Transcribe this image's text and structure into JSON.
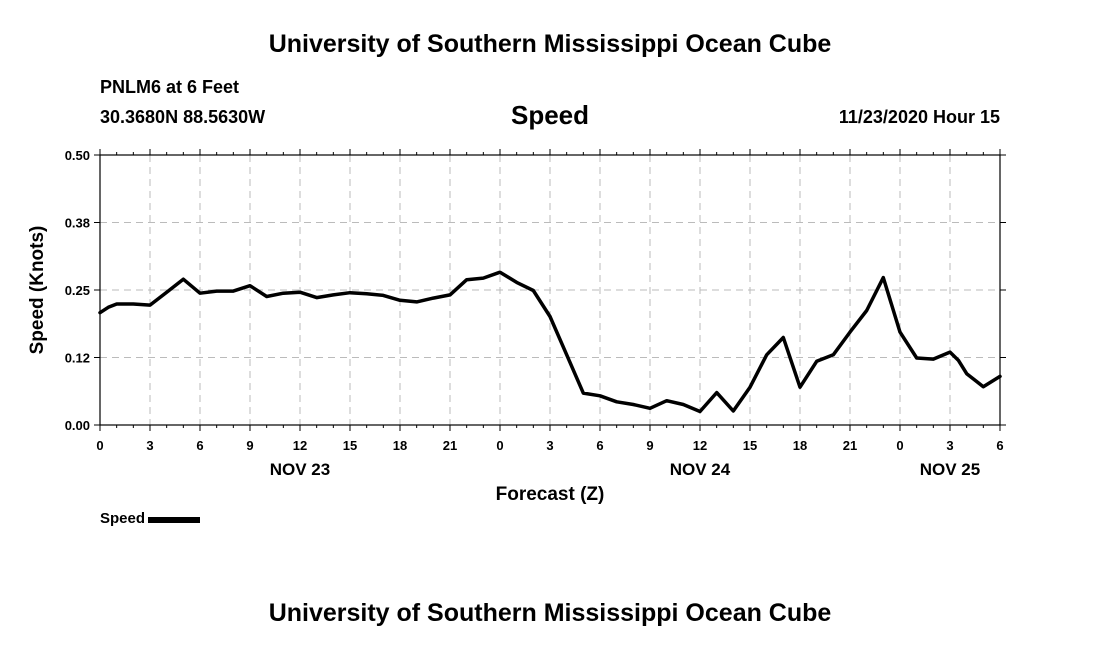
{
  "header": {
    "title": "University of Southern Mississippi Ocean Cube",
    "station": "PNLM6 at 6 Feet",
    "coords": "30.3680N 88.5630W",
    "timestamp": "11/23/2020 Hour 15"
  },
  "footer": {
    "title": "University of Southern Mississippi Ocean Cube"
  },
  "legend": {
    "label": "Speed",
    "color": "#000000"
  },
  "colors": {
    "line": "#000000",
    "grid": "#bbbbbb",
    "frame": "#000000"
  },
  "chart_data": {
    "type": "line",
    "title": "Speed",
    "xlabel": "Forecast (Z)",
    "ylabel": "Speed (Knots)",
    "ylim": [
      0,
      0.5
    ],
    "yticks": [
      "0.00",
      "0.12",
      "0.25",
      "0.38",
      "0.50"
    ],
    "xlim": [
      0,
      54
    ],
    "xtick_labels": [
      "0",
      "3",
      "6",
      "9",
      "12",
      "15",
      "18",
      "21",
      "0",
      "3",
      "6",
      "9",
      "12",
      "15",
      "18",
      "21",
      "0",
      "3",
      "6"
    ],
    "date_labels": [
      {
        "label": "NOV 23",
        "at_hour": 12
      },
      {
        "label": "NOV 24",
        "at_hour": 36
      },
      {
        "label": "NOV 25",
        "at_hour": 51
      }
    ],
    "grid": true,
    "legend_position": "bottom-left",
    "series": [
      {
        "name": "Speed",
        "x": [
          0,
          0.5,
          1,
          2,
          3,
          4,
          5,
          6,
          7,
          8,
          9,
          10,
          11,
          12,
          13,
          14,
          15,
          16,
          17,
          18,
          19,
          20,
          21,
          22,
          23,
          24,
          25,
          26,
          27,
          28,
          29,
          30,
          31,
          32,
          33,
          34,
          35,
          36,
          37,
          38,
          39,
          40,
          41,
          42,
          43,
          44,
          45,
          46,
          47,
          48,
          49,
          50,
          51,
          51.5,
          52,
          53,
          54
        ],
        "values": [
          0.208,
          0.218,
          0.224,
          0.224,
          0.222,
          0.246,
          0.27,
          0.244,
          0.248,
          0.248,
          0.258,
          0.238,
          0.244,
          0.246,
          0.236,
          0.241,
          0.245,
          0.243,
          0.24,
          0.231,
          0.228,
          0.235,
          0.241,
          0.269,
          0.272,
          0.283,
          0.264,
          0.249,
          0.201,
          0.13,
          0.059,
          0.054,
          0.043,
          0.038,
          0.031,
          0.045,
          0.038,
          0.025,
          0.06,
          0.026,
          0.07,
          0.13,
          0.162,
          0.07,
          0.118,
          0.13,
          0.172,
          0.212,
          0.273,
          0.172,
          0.124,
          0.122,
          0.135,
          0.12,
          0.095,
          0.071,
          0.09
        ]
      }
    ]
  }
}
